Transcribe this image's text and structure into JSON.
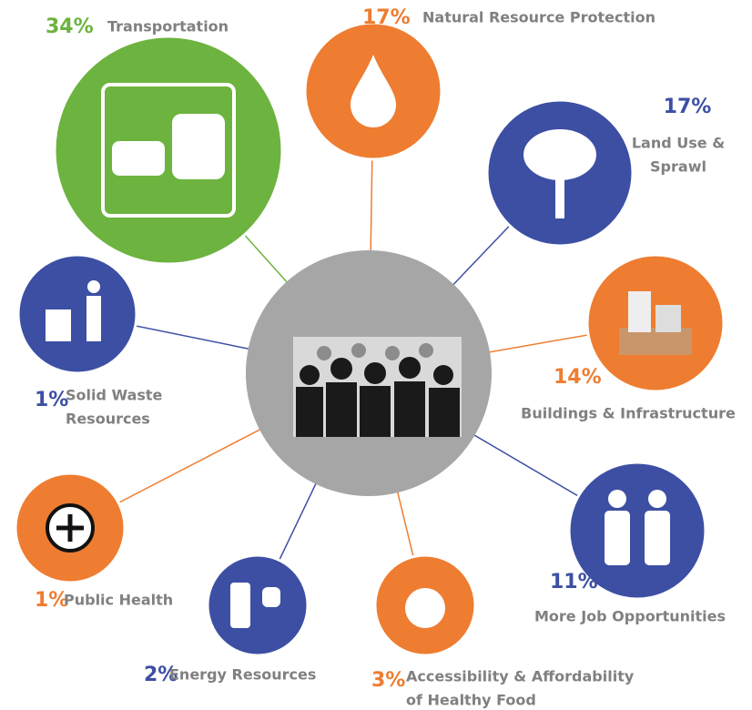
{
  "nodes": [
    {
      "percent": "34%",
      "label_lines": [
        "Transportation"
      ],
      "color": "#6db33f"
    },
    {
      "percent": "17%",
      "label_lines": [
        "Natural Resource Protection"
      ],
      "color": "#ee7d31"
    },
    {
      "percent": "17%",
      "label_lines": [
        "Land Use &",
        "Sprawl"
      ],
      "color": "#3d4fa3"
    },
    {
      "percent": "14%",
      "label_lines": [
        "Buildings & Infrastructure"
      ],
      "color": "#ee7d31"
    },
    {
      "percent": "11%",
      "label_lines": [
        "More Job Opportunities"
      ],
      "color": "#3d4fa3"
    },
    {
      "percent": "3%",
      "label_lines": [
        "Accessibility & Affordability",
        "of Healthy Food"
      ],
      "color": "#ee7d31"
    },
    {
      "percent": "2%",
      "label_lines": [
        "Energy Resources"
      ],
      "color": "#3d4fa3"
    },
    {
      "percent": "1%",
      "label_lines": [
        "Public Health"
      ],
      "color": "#ee7d31"
    },
    {
      "percent": "1%",
      "label_lines": [
        "Solid Waste",
        "Resources"
      ],
      "color": "#3d4fa3"
    }
  ]
}
